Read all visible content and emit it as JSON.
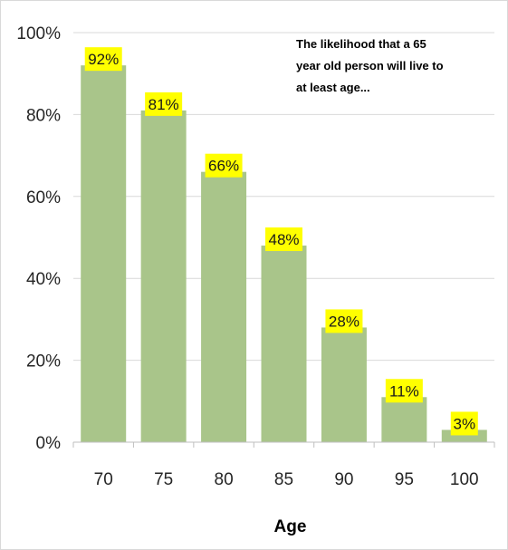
{
  "chart_data": {
    "type": "bar",
    "categories": [
      "70",
      "75",
      "80",
      "85",
      "90",
      "95",
      "100"
    ],
    "values": [
      92,
      81,
      66,
      48,
      28,
      11,
      3
    ],
    "data_labels": [
      "92%",
      "81%",
      "66%",
      "48%",
      "28%",
      "11%",
      "3%"
    ],
    "title": "",
    "annotation_lines": [
      "The likelihood that a 65",
      "year old person will live to",
      "at least age..."
    ],
    "xlabel": "Age",
    "ylabel": "",
    "ylim": [
      0,
      100
    ],
    "y_ticks": [
      0,
      20,
      40,
      60,
      80,
      100
    ],
    "y_tick_labels": [
      "0%",
      "20%",
      "40%",
      "60%",
      "80%",
      "100%"
    ],
    "grid": true,
    "legend": "none",
    "colors": {
      "bar": "#a9c58a",
      "label_bg": "#ffff00",
      "grid": "#d9d9d9",
      "axis": "#bfbfbf"
    }
  }
}
